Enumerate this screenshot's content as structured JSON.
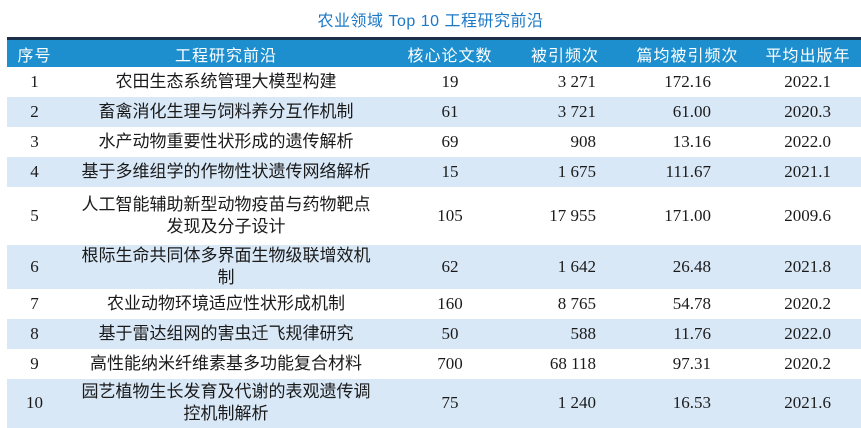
{
  "title": "农业领域 Top 10 工程研究前沿",
  "colors": {
    "title_text": "#1c79c6",
    "top_rule": "#1b2f4a",
    "header_bg": "#1e8fce",
    "header_text": "#ffffff",
    "row_bg": "#ffffff",
    "row_alt_bg": "#d9e8f7",
    "body_text": "#1a1a1a"
  },
  "table": {
    "columns": {
      "rank": "序号",
      "front": "工程研究前沿",
      "papers": "核心论文数",
      "citations": "被引频次",
      "avg_citations": "篇均被引频次",
      "avg_year": "平均出版年"
    },
    "rows": [
      {
        "rank": "1",
        "front": "农田生态系统管理大模型构建",
        "papers": "19",
        "citations": "3 271",
        "avg_citations": "172.16",
        "avg_year": "2022.1"
      },
      {
        "rank": "2",
        "front": "畜禽消化生理与饲料养分互作机制",
        "papers": "61",
        "citations": "3 721",
        "avg_citations": "61.00",
        "avg_year": "2020.3"
      },
      {
        "rank": "3",
        "front": "水产动物重要性状形成的遗传解析",
        "papers": "69",
        "citations": "908",
        "avg_citations": "13.16",
        "avg_year": "2022.0"
      },
      {
        "rank": "4",
        "front": "基于多维组学的作物性状遗传网络解析",
        "papers": "15",
        "citations": "1 675",
        "avg_citations": "111.67",
        "avg_year": "2021.1"
      },
      {
        "rank": "5",
        "front": "人工智能辅助新型动物疫苗与药物靶点发现及分子设计",
        "papers": "105",
        "citations": "17 955",
        "avg_citations": "171.00",
        "avg_year": "2009.6"
      },
      {
        "rank": "6",
        "front": "根际生命共同体多界面生物级联增效机制",
        "papers": "62",
        "citations": "1 642",
        "avg_citations": "26.48",
        "avg_year": "2021.8"
      },
      {
        "rank": "7",
        "front": "农业动物环境适应性状形成机制",
        "papers": "160",
        "citations": "8 765",
        "avg_citations": "54.78",
        "avg_year": "2020.2"
      },
      {
        "rank": "8",
        "front": "基于雷达组网的害虫迁飞规律研究",
        "papers": "50",
        "citations": "588",
        "avg_citations": "11.76",
        "avg_year": "2022.0"
      },
      {
        "rank": "9",
        "front": "高性能纳米纤维素基多功能复合材料",
        "papers": "700",
        "citations": "68 118",
        "avg_citations": "97.31",
        "avg_year": "2020.2"
      },
      {
        "rank": "10",
        "front": "园艺植物生长发育及代谢的表观遗传调控机制解析",
        "papers": "75",
        "citations": "1 240",
        "avg_citations": "16.53",
        "avg_year": "2021.6"
      }
    ]
  }
}
